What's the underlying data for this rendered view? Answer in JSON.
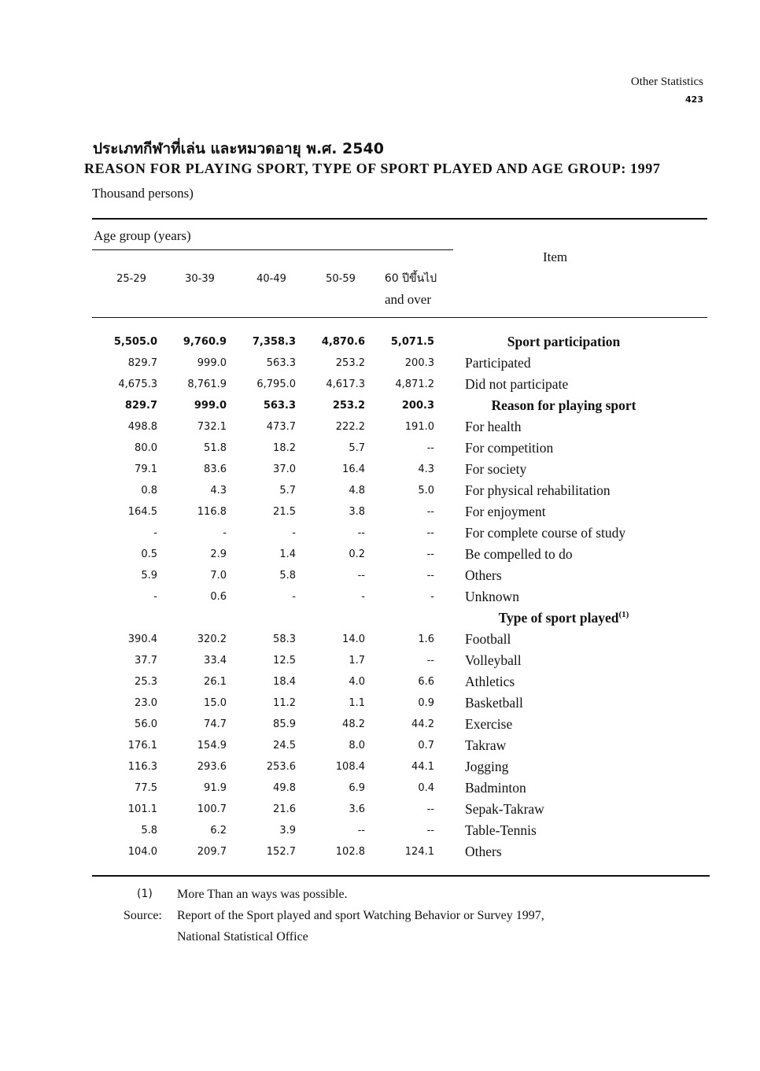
{
  "header": {
    "section": "Other Statistics",
    "page": "423"
  },
  "title_thai": "ประเภทกีฬาที่เล่น และหมวดอายุ พ.ศ. 2540",
  "title_en": "REASON FOR PLAYING SPORT, TYPE OF SPORT PLAYED AND AGE GROUP: 1997",
  "unit": "Thousand persons)",
  "columns": {
    "group": "Age group (years)",
    "item": "Item",
    "ages": [
      "25-29",
      "30-39",
      "40-49",
      "50-59",
      "60 ปีขึ้นไป"
    ],
    "age_last_en": "and over"
  },
  "rows": [
    {
      "v": [
        "5,505.0",
        "9,760.9",
        "7,358.3",
        "4,870.6",
        "5,071.5"
      ],
      "item": "Sport participation",
      "heading": true,
      "bold": true
    },
    {
      "v": [
        "829.7",
        "999.0",
        "563.3",
        "253.2",
        "200.3"
      ],
      "item": "Participated"
    },
    {
      "v": [
        "4,675.3",
        "8,761.9",
        "6,795.0",
        "4,617.3",
        "4,871.2"
      ],
      "item": "Did not participate"
    },
    {
      "v": [
        "829.7",
        "999.0",
        "563.3",
        "253.2",
        "200.3"
      ],
      "item": "Reason for playing sport",
      "heading": true,
      "bold": true
    },
    {
      "v": [
        "498.8",
        "732.1",
        "473.7",
        "222.2",
        "191.0"
      ],
      "item": "For health"
    },
    {
      "v": [
        "80.0",
        "51.8",
        "18.2",
        "5.7",
        "--"
      ],
      "item": "For competition"
    },
    {
      "v": [
        "79.1",
        "83.6",
        "37.0",
        "16.4",
        "4.3"
      ],
      "item": "For society"
    },
    {
      "v": [
        "0.8",
        "4.3",
        "5.7",
        "4.8",
        "5.0"
      ],
      "item": "For physical rehabilitation"
    },
    {
      "v": [
        "164.5",
        "116.8",
        "21.5",
        "3.8",
        "--"
      ],
      "item": "For enjoyment"
    },
    {
      "v": [
        "-",
        "-",
        "-",
        "--",
        "--"
      ],
      "item": "For complete course of study"
    },
    {
      "v": [
        "0.5",
        "2.9",
        "1.4",
        "0.2",
        "--"
      ],
      "item": "Be compelled to do"
    },
    {
      "v": [
        "5.9",
        "7.0",
        "5.8",
        "--",
        "--"
      ],
      "item": "Others"
    },
    {
      "v": [
        "-",
        "0.6",
        "-",
        "-",
        "-"
      ],
      "item": "Unknown"
    },
    {
      "v": [
        "",
        "",
        "",
        "",
        ""
      ],
      "item": "Type of sport played",
      "heading": true,
      "sup": "(1)"
    },
    {
      "v": [
        "390.4",
        "320.2",
        "58.3",
        "14.0",
        "1.6"
      ],
      "item": "Football"
    },
    {
      "v": [
        "37.7",
        "33.4",
        "12.5",
        "1.7",
        "--"
      ],
      "item": "Volleyball"
    },
    {
      "v": [
        "25.3",
        "26.1",
        "18.4",
        "4.0",
        "6.6"
      ],
      "item": "Athletics"
    },
    {
      "v": [
        "23.0",
        "15.0",
        "11.2",
        "1.1",
        "0.9"
      ],
      "item": "Basketball"
    },
    {
      "v": [
        "56.0",
        "74.7",
        "85.9",
        "48.2",
        "44.2"
      ],
      "item": "Exercise"
    },
    {
      "v": [
        "176.1",
        "154.9",
        "24.5",
        "8.0",
        "0.7"
      ],
      "item": "Takraw"
    },
    {
      "v": [
        "116.3",
        "293.6",
        "253.6",
        "108.4",
        "44.1"
      ],
      "item": "Jogging"
    },
    {
      "v": [
        "77.5",
        "91.9",
        "49.8",
        "6.9",
        "0.4"
      ],
      "item": "Badminton"
    },
    {
      "v": [
        "101.1",
        "100.7",
        "21.6",
        "3.6",
        "--"
      ],
      "item": "Sepak-Takraw"
    },
    {
      "v": [
        "5.8",
        "6.2",
        "3.9",
        "--",
        "--"
      ],
      "item": "Table-Tennis"
    },
    {
      "v": [
        "104.0",
        "209.7",
        "152.7",
        "102.8",
        "124.1"
      ],
      "item": "Others"
    }
  ],
  "footnotes": {
    "note_mark": "(1)",
    "note": "More Than an ways was possible.",
    "source_label": "Source:",
    "source_line1": "Report of the Sport played and sport Watching Behavior or Survey 1997,",
    "source_line2": "National Statistical Office"
  }
}
